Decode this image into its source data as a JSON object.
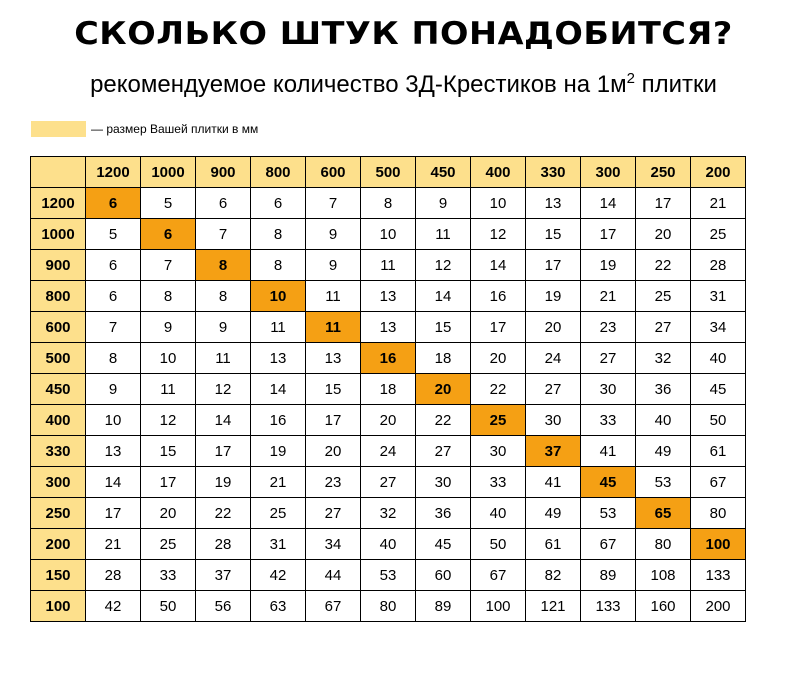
{
  "title": "СКОЛЬКО ШТУК ПОНАДОБИТСЯ?",
  "subtitle": {
    "text": "рекомендуемое количество 3Д-Крестиков на 1м",
    "sup": "2",
    "suffix": " плитки"
  },
  "legend": {
    "text": "— размер Вашей плитки в мм"
  },
  "colors": {
    "header_fill": "#fde08c",
    "diagonal_fill": "#f5a014",
    "border": "#000000"
  },
  "chart_data": {
    "type": "table",
    "columns": [
      "1200",
      "1000",
      "900",
      "800",
      "600",
      "500",
      "450",
      "400",
      "330",
      "300",
      "250",
      "200"
    ],
    "rows": [
      {
        "label": "1200",
        "values": [
          "6",
          "5",
          "6",
          "6",
          "7",
          "8",
          "9",
          "10",
          "13",
          "14",
          "17",
          "21"
        ]
      },
      {
        "label": "1000",
        "values": [
          "5",
          "6",
          "7",
          "8",
          "9",
          "10",
          "11",
          "12",
          "15",
          "17",
          "20",
          "25"
        ]
      },
      {
        "label": "900",
        "values": [
          "6",
          "7",
          "8",
          "8",
          "9",
          "11",
          "12",
          "14",
          "17",
          "19",
          "22",
          "28"
        ]
      },
      {
        "label": "800",
        "values": [
          "6",
          "8",
          "8",
          "10",
          "11",
          "13",
          "14",
          "16",
          "19",
          "21",
          "25",
          "31"
        ]
      },
      {
        "label": "600",
        "values": [
          "7",
          "9",
          "9",
          "11",
          "11",
          "13",
          "15",
          "17",
          "20",
          "23",
          "27",
          "34"
        ]
      },
      {
        "label": "500",
        "values": [
          "8",
          "10",
          "11",
          "13",
          "13",
          "16",
          "18",
          "20",
          "24",
          "27",
          "32",
          "40"
        ]
      },
      {
        "label": "450",
        "values": [
          "9",
          "11",
          "12",
          "14",
          "15",
          "18",
          "20",
          "22",
          "27",
          "30",
          "36",
          "45"
        ]
      },
      {
        "label": "400",
        "values": [
          "10",
          "12",
          "14",
          "16",
          "17",
          "20",
          "22",
          "25",
          "30",
          "33",
          "40",
          "50"
        ]
      },
      {
        "label": "330",
        "values": [
          "13",
          "15",
          "17",
          "19",
          "20",
          "24",
          "27",
          "30",
          "37",
          "41",
          "49",
          "61"
        ]
      },
      {
        "label": "300",
        "values": [
          "14",
          "17",
          "19",
          "21",
          "23",
          "27",
          "30",
          "33",
          "41",
          "45",
          "53",
          "67"
        ]
      },
      {
        "label": "250",
        "values": [
          "17",
          "20",
          "22",
          "25",
          "27",
          "32",
          "36",
          "40",
          "49",
          "53",
          "65",
          "80"
        ]
      },
      {
        "label": "200",
        "values": [
          "21",
          "25",
          "28",
          "31",
          "34",
          "40",
          "45",
          "50",
          "61",
          "67",
          "80",
          "100"
        ]
      },
      {
        "label": "150",
        "values": [
          "28",
          "33",
          "37",
          "42",
          "44",
          "53",
          "60",
          "67",
          "82",
          "89",
          "108",
          "133"
        ]
      },
      {
        "label": "100",
        "values": [
          "42",
          "50",
          "56",
          "63",
          "67",
          "80",
          "89",
          "100",
          "121",
          "133",
          "160",
          "200"
        ]
      }
    ],
    "highlighted_cells": "diagonal (row label equals column label)"
  }
}
